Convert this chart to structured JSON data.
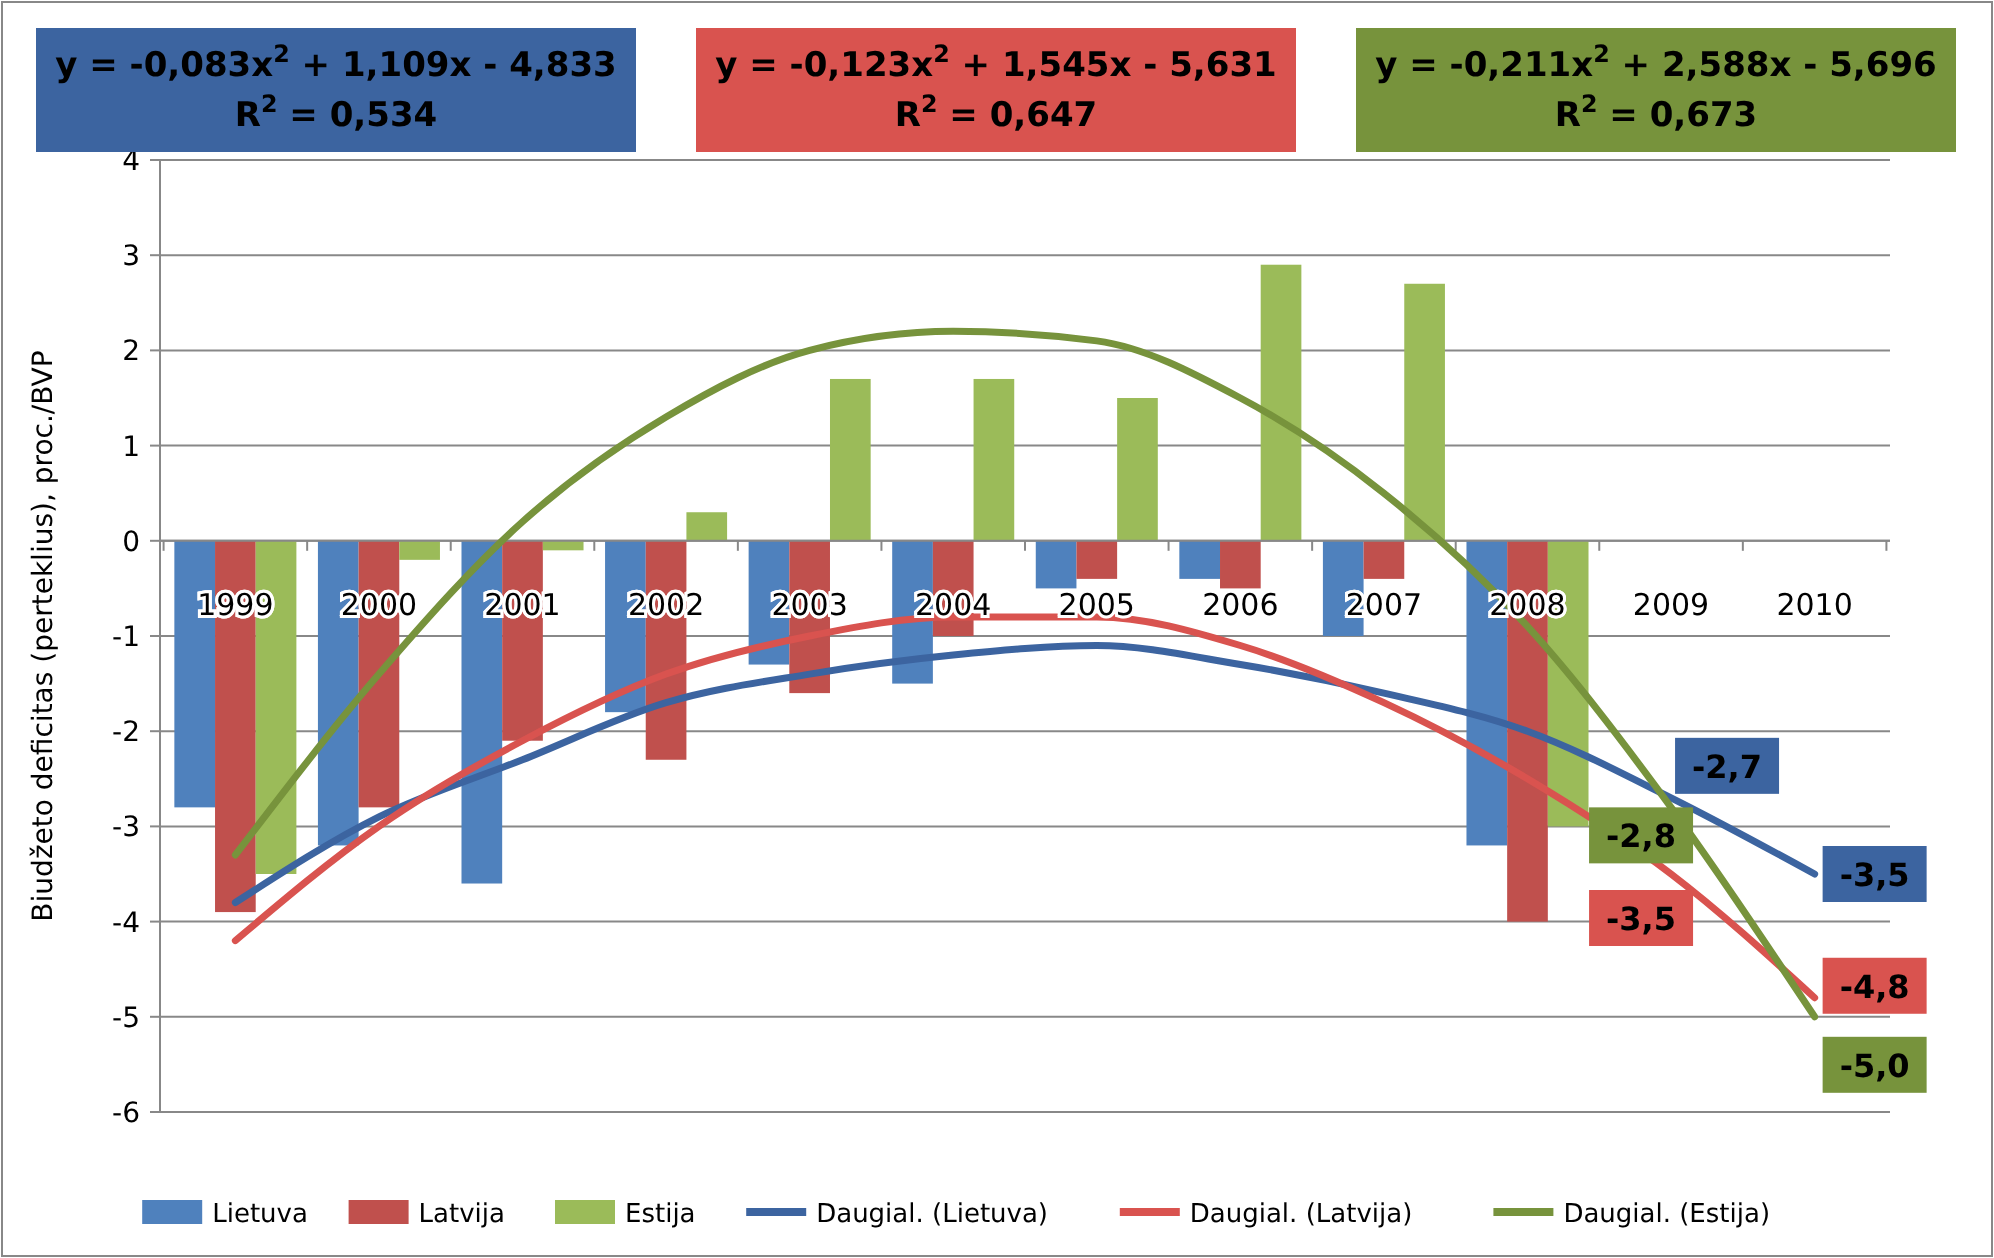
{
  "chart_data": {
    "type": "bar",
    "ylabel": "Biudžeto deficitas (perteklius), proc./BVP",
    "categories": [
      "1999",
      "2000",
      "2001",
      "2002",
      "2003",
      "2004",
      "2005",
      "2006",
      "2007",
      "2008",
      "2009",
      "2010"
    ],
    "ylim": [
      -6,
      4
    ],
    "yticks": [
      -6,
      -5,
      -4,
      -3,
      -2,
      -1,
      0,
      1,
      2,
      3,
      4
    ],
    "grid": "y",
    "legend": "bottom",
    "marker": "none",
    "line_style": "solid",
    "annotations": [
      "y = -0,083x$^{2}$ + 1,109x - 4,833\nR$^{2}$ = 0,534",
      "y = -0,123x$^{2}$ + 1,545x - 5,631\nR$^{2}$ = 0,647",
      "y = -0,211x$^{2}$ + 2,588x - 5,696\nR$^{2}$ = 0,673"
    ],
    "series": [
      {
        "name": "Lietuva",
        "color": "#4f81bd",
        "values": [
          -2.8,
          -3.2,
          -3.6,
          -1.8,
          -1.3,
          -1.5,
          -0.5,
          -0.4,
          -1.0,
          -3.2,
          null,
          null
        ]
      },
      {
        "name": "Latvija",
        "color": "#c0504d",
        "values": [
          -3.9,
          -2.8,
          -2.1,
          -2.3,
          -1.6,
          -1.0,
          -0.4,
          -0.5,
          -0.4,
          -4.0,
          null,
          null
        ]
      },
      {
        "name": "Estija",
        "color": "#9bbb59",
        "values": [
          -3.5,
          -0.2,
          -0.1,
          0.3,
          1.7,
          1.7,
          1.5,
          2.9,
          2.7,
          -3.0,
          null,
          null
        ]
      },
      {
        "name": "Daugial. (Lietuva)",
        "type": "line",
        "color": "#3c64a0",
        "values": [
          -3.8,
          -2.9,
          -2.3,
          -1.7,
          -1.4,
          -1.2,
          -1.1,
          -1.3,
          -1.6,
          -2.0,
          -2.7,
          -3.5
        ],
        "value_labels": [
          null,
          null,
          null,
          null,
          null,
          null,
          null,
          null,
          null,
          null,
          "-2,7",
          "-3,5"
        ]
      },
      {
        "name": "Daugial. (Latvija)",
        "type": "line",
        "color": "#d9534f",
        "values": [
          -4.2,
          -3.0,
          -2.1,
          -1.4,
          -1.0,
          -0.8,
          -0.8,
          -1.1,
          -1.7,
          -2.5,
          -3.5,
          -4.8
        ],
        "value_labels": [
          null,
          null,
          null,
          null,
          null,
          null,
          null,
          null,
          null,
          null,
          "-3,5",
          "-4,8"
        ]
      },
      {
        "name": "Daugial. (Estija)",
        "type": "line",
        "color": "#77933c",
        "values": [
          -3.3,
          -1.4,
          0.2,
          1.3,
          2.0,
          2.2,
          2.1,
          1.5,
          0.5,
          -0.9,
          -2.8,
          -5.0
        ],
        "value_labels": [
          null,
          null,
          null,
          null,
          null,
          null,
          null,
          null,
          null,
          null,
          "-2,8",
          "-5,0"
        ]
      }
    ]
  }
}
